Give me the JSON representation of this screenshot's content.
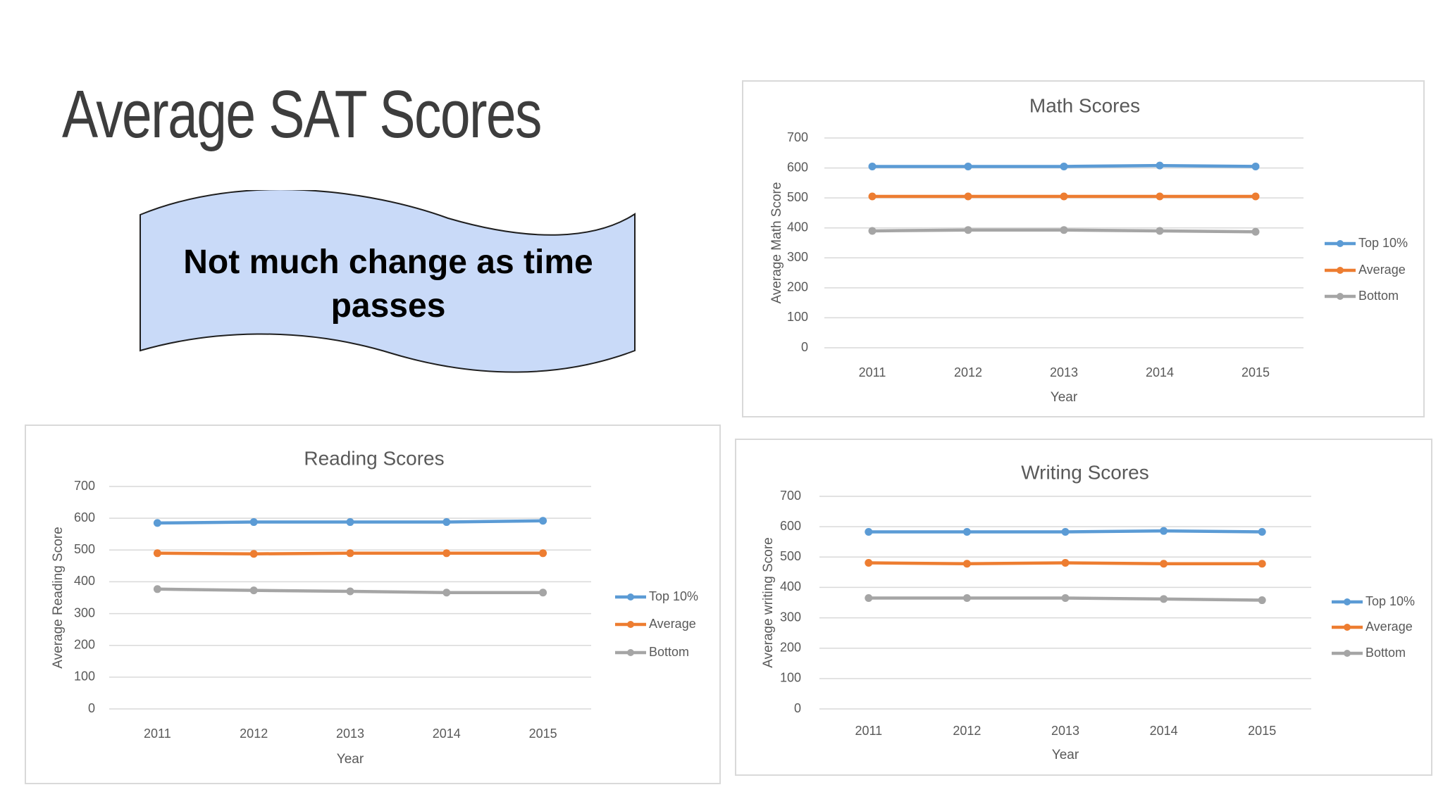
{
  "slide": {
    "title": "Average SAT Scores",
    "banner_text": "Not much change as time passes",
    "banner_fill": "#c9daf8"
  },
  "series_colors": {
    "Top 10%": "#5b9bd5",
    "Average": "#ed7d31",
    "Bottom": "#a5a5a5"
  },
  "chart_data": [
    {
      "id": "math",
      "type": "line",
      "title": "Math Scores",
      "xlabel": "Year",
      "ylabel": "Average Math Score",
      "categories": [
        "2011",
        "2012",
        "2013",
        "2014",
        "2015"
      ],
      "ylim": [
        0,
        700
      ],
      "yticks": [
        "0",
        "100",
        "200",
        "300",
        "400",
        "500",
        "600",
        "700"
      ],
      "grid": true,
      "legend": "right",
      "series": [
        {
          "name": "Top 10%",
          "values": [
            605,
            605,
            605,
            608,
            605
          ]
        },
        {
          "name": "Average",
          "values": [
            505,
            505,
            505,
            505,
            505
          ]
        },
        {
          "name": "Bottom",
          "values": [
            390,
            393,
            393,
            390,
            387
          ]
        }
      ]
    },
    {
      "id": "reading",
      "type": "line",
      "title": "Reading Scores",
      "xlabel": "Year",
      "ylabel": "Average Reading Score",
      "categories": [
        "2011",
        "2012",
        "2013",
        "2014",
        "2015"
      ],
      "ylim": [
        0,
        700
      ],
      "yticks": [
        "0",
        "100",
        "200",
        "300",
        "400",
        "500",
        "600",
        "700"
      ],
      "grid": true,
      "legend": "right",
      "series": [
        {
          "name": "Top 10%",
          "values": [
            585,
            588,
            588,
            588,
            592
          ]
        },
        {
          "name": "Average",
          "values": [
            490,
            488,
            490,
            490,
            490
          ]
        },
        {
          "name": "Bottom",
          "values": [
            377,
            373,
            370,
            366,
            366
          ]
        }
      ]
    },
    {
      "id": "writing",
      "type": "line",
      "title": "Writing Scores",
      "xlabel": "Year",
      "ylabel": "Average writing Score",
      "categories": [
        "2011",
        "2012",
        "2013",
        "2014",
        "2015"
      ],
      "ylim": [
        0,
        700
      ],
      "yticks": [
        "0",
        "100",
        "200",
        "300",
        "400",
        "500",
        "600",
        "700"
      ],
      "grid": true,
      "legend": "right",
      "series": [
        {
          "name": "Top 10%",
          "values": [
            583,
            583,
            583,
            586,
            583
          ]
        },
        {
          "name": "Average",
          "values": [
            481,
            478,
            481,
            478,
            478
          ]
        },
        {
          "name": "Bottom",
          "values": [
            365,
            365,
            365,
            362,
            358
          ]
        }
      ]
    }
  ]
}
